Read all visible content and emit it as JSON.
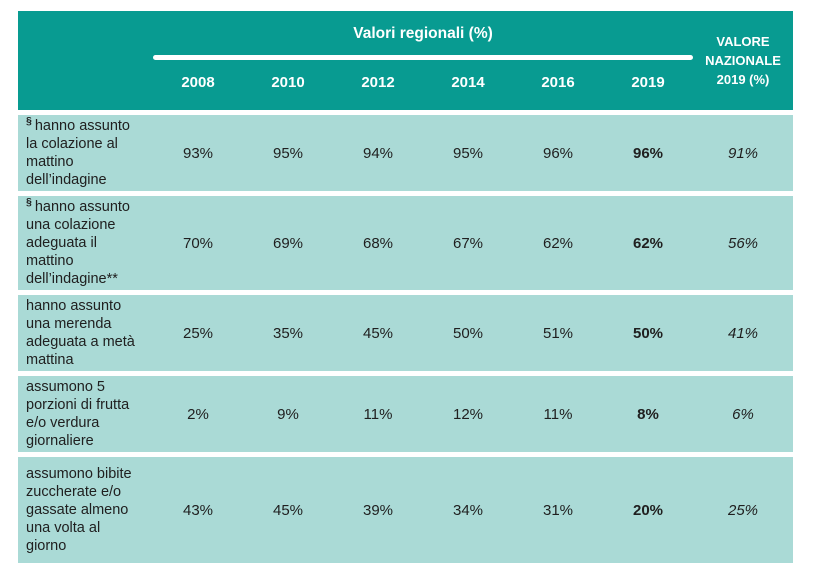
{
  "table": {
    "header": {
      "group_title": "Valori regionali (%)",
      "years": [
        "2008",
        "2010",
        "2012",
        "2014",
        "2016",
        "2019"
      ],
      "national_label": "VALORE NAZIONALE 2019 (%)"
    },
    "rows": [
      {
        "prefix": "§",
        "label": "hanno assunto la colazione al mattino dell’indagine",
        "values": [
          "93%",
          "95%",
          "94%",
          "95%",
          "96%",
          "96%"
        ],
        "national": "91%"
      },
      {
        "prefix": "§",
        "label": "hanno assunto una colazione adeguata il mattino dell’indagine**",
        "values": [
          "70%",
          "69%",
          "68%",
          "67%",
          "62%",
          "62%"
        ],
        "national": "56%"
      },
      {
        "prefix": "",
        "label": "hanno assunto una merenda adeguata a metà mattina",
        "values": [
          "25%",
          "35%",
          "45%",
          "50%",
          "51%",
          "50%"
        ],
        "national": "41%"
      },
      {
        "prefix": "",
        "label": "assumono 5 porzioni di frutta e/o verdura giornaliere",
        "values": [
          "2%",
          "9%",
          "11%",
          "12%",
          "11%",
          "8%"
        ],
        "national": "6%"
      },
      {
        "prefix": "",
        "label": "assumono bibite zuccherate e/o gassate almeno una volta al giorno",
        "values": [
          "43%",
          "45%",
          "39%",
          "34%",
          "31%",
          "20%"
        ],
        "national": "25%"
      }
    ],
    "colors": {
      "header_bg": "#089b91",
      "row_bg": "#aadad6",
      "header_text": "#ffffff",
      "body_text": "#202020"
    }
  },
  "chart_data": {
    "type": "table",
    "title": "Valori regionali (%)",
    "unit": "%",
    "columns": [
      "2008",
      "2010",
      "2012",
      "2014",
      "2016",
      "2019",
      "VALORE NAZIONALE 2019 (%)"
    ],
    "rows": [
      {
        "label": "§ hanno assunto la colazione al mattino dell’indagine",
        "values": [
          93,
          95,
          94,
          95,
          96,
          96
        ],
        "valore_nazionale_2019": 91
      },
      {
        "label": "§ hanno assunto una colazione adeguata il mattino dell’indagine**",
        "values": [
          70,
          69,
          68,
          67,
          62,
          62
        ],
        "valore_nazionale_2019": 56
      },
      {
        "label": "hanno assunto una merenda adeguata a metà mattina",
        "values": [
          25,
          35,
          45,
          50,
          51,
          50
        ],
        "valore_nazionale_2019": 41
      },
      {
        "label": "assumono 5 porzioni di frutta e/o verdura giornaliere",
        "values": [
          2,
          9,
          11,
          12,
          11,
          8
        ],
        "valore_nazionale_2019": 6
      },
      {
        "label": "assumono bibite zuccherate e/o gassate almeno una volta al giorno",
        "values": [
          43,
          45,
          39,
          34,
          31,
          20
        ],
        "valore_nazionale_2019": 25
      }
    ],
    "notes": "2019 column shown bold; national value column shown italic"
  }
}
